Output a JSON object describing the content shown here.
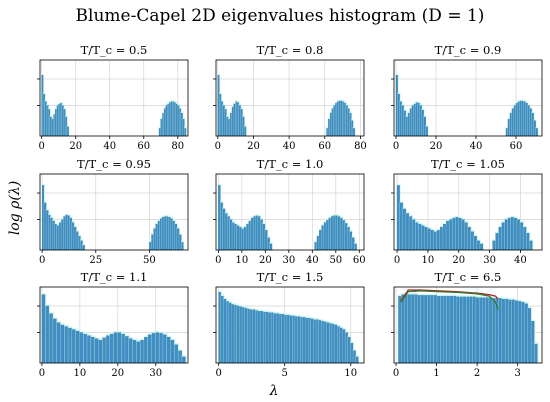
{
  "figure": {
    "title": "Blume-Capel 2D eigenvalues histogram (D = 1)",
    "xlabel": "λ",
    "ylabel": "log ρ(λ)"
  },
  "colors": {
    "bar": "#3f8fc6",
    "bar_edge": "#2f6f9e",
    "glow": "#bff3ef",
    "grid": "#d4d4d4",
    "fit_red": "#b22222",
    "fit_green": "#2e7d32"
  },
  "chart_data": [
    {
      "type": "bar",
      "title": "T/T_c = 0.5",
      "xlim": [
        -1,
        86
      ],
      "xticks": [
        0,
        20,
        40,
        60,
        80
      ],
      "grid": true,
      "legend": "none",
      "x": [
        0.5,
        1.5,
        2.5,
        3.5,
        4.5,
        5.5,
        6.5,
        7.5,
        8.5,
        9.5,
        10.5,
        11.5,
        12.5,
        13.5,
        14.5,
        15.5,
        69.5,
        70.5,
        71.5,
        72.5,
        73.5,
        74.5,
        75.5,
        76.5,
        77.5,
        78.5,
        79.5,
        80.5,
        81.5,
        82.5,
        83.5,
        84.5
      ],
      "values": [
        0.8,
        0.55,
        0.45,
        0.4,
        0.35,
        0.25,
        0.22,
        0.28,
        0.35,
        0.4,
        0.42,
        0.43,
        0.4,
        0.35,
        0.25,
        0.12,
        0.1,
        0.22,
        0.3,
        0.36,
        0.4,
        0.42,
        0.44,
        0.45,
        0.45,
        0.44,
        0.42,
        0.4,
        0.36,
        0.3,
        0.22,
        0.1
      ]
    },
    {
      "type": "bar",
      "title": "T/T_c = 0.8",
      "xlim": [
        -1,
        82
      ],
      "xticks": [
        0,
        20,
        40,
        60,
        80
      ],
      "grid": true,
      "legend": "none",
      "x": [
        0.5,
        1.5,
        2.5,
        3.5,
        4.5,
        5.5,
        6.5,
        7.5,
        8.5,
        9.5,
        10.5,
        11.5,
        12.5,
        13.5,
        14.5,
        15.5,
        61.5,
        62.5,
        63.5,
        64.5,
        65.5,
        66.5,
        67.5,
        68.5,
        69.5,
        70.5,
        71.5,
        72.5,
        73.5,
        74.5,
        75.5,
        76.5
      ],
      "values": [
        0.8,
        0.55,
        0.45,
        0.4,
        0.35,
        0.25,
        0.22,
        0.3,
        0.38,
        0.42,
        0.45,
        0.44,
        0.4,
        0.35,
        0.25,
        0.12,
        0.1,
        0.22,
        0.3,
        0.36,
        0.4,
        0.43,
        0.45,
        0.46,
        0.46,
        0.45,
        0.43,
        0.4,
        0.36,
        0.3,
        0.2,
        0.1
      ]
    },
    {
      "type": "bar",
      "title": "T/T_c = 0.9",
      "xlim": [
        -1,
        73
      ],
      "xticks": [
        0,
        20,
        40,
        60
      ],
      "grid": true,
      "legend": "none",
      "x": [
        0.5,
        1.5,
        2.5,
        3.5,
        4.5,
        5.5,
        6.5,
        7.5,
        8.5,
        9.5,
        10.5,
        11.5,
        12.5,
        13.5,
        14.5,
        15.5,
        55.5,
        56.5,
        57.5,
        58.5,
        59.5,
        60.5,
        61.5,
        62.5,
        63.5,
        64.5,
        65.5,
        66.5,
        67.5,
        68.5,
        69.5,
        70.5
      ],
      "values": [
        0.8,
        0.55,
        0.45,
        0.4,
        0.33,
        0.25,
        0.3,
        0.36,
        0.4,
        0.42,
        0.44,
        0.43,
        0.4,
        0.34,
        0.25,
        0.12,
        0.1,
        0.22,
        0.3,
        0.36,
        0.4,
        0.43,
        0.45,
        0.46,
        0.46,
        0.45,
        0.43,
        0.4,
        0.36,
        0.3,
        0.2,
        0.1
      ]
    },
    {
      "type": "bar",
      "title": "T/T_c = 0.95",
      "xlim": [
        -1,
        68
      ],
      "xticks": [
        0,
        25,
        50
      ],
      "grid": true,
      "legend": "none",
      "x": [
        0.5,
        1.5,
        2.5,
        3.5,
        4.5,
        5.5,
        6.5,
        7.5,
        8.5,
        9.5,
        10.5,
        11.5,
        12.5,
        13.5,
        14.5,
        15.5,
        16.5,
        17.5,
        18.5,
        19.5,
        50.5,
        51.5,
        52.5,
        53.5,
        54.5,
        55.5,
        56.5,
        57.5,
        58.5,
        59.5,
        60.5,
        61.5,
        62.5,
        63.5,
        64.5,
        65.5
      ],
      "values": [
        0.85,
        0.62,
        0.52,
        0.46,
        0.42,
        0.38,
        0.34,
        0.32,
        0.36,
        0.4,
        0.44,
        0.46,
        0.45,
        0.42,
        0.36,
        0.3,
        0.24,
        0.18,
        0.12,
        0.06,
        0.1,
        0.2,
        0.28,
        0.34,
        0.38,
        0.41,
        0.43,
        0.44,
        0.44,
        0.43,
        0.41,
        0.38,
        0.34,
        0.28,
        0.2,
        0.1
      ]
    },
    {
      "type": "bar",
      "title": "T/T_c = 1.0",
      "xlim": [
        -1,
        62
      ],
      "xticks": [
        0,
        10,
        20,
        30,
        40,
        50,
        60
      ],
      "grid": true,
      "legend": "none",
      "x": [
        0.5,
        1.5,
        2.5,
        3.5,
        4.5,
        5.5,
        6.5,
        7.5,
        8.5,
        9.5,
        10.5,
        11.5,
        12.5,
        13.5,
        14.5,
        15.5,
        16.5,
        17.5,
        18.5,
        19.5,
        20.5,
        21.5,
        22.5,
        41.5,
        42.5,
        43.5,
        44.5,
        45.5,
        46.5,
        47.5,
        48.5,
        49.5,
        50.5,
        51.5,
        52.5,
        53.5,
        54.5,
        55.5,
        56.5,
        57.5,
        58.5
      ],
      "values": [
        0.85,
        0.62,
        0.54,
        0.48,
        0.44,
        0.4,
        0.36,
        0.34,
        0.32,
        0.3,
        0.28,
        0.3,
        0.34,
        0.38,
        0.42,
        0.44,
        0.45,
        0.44,
        0.4,
        0.34,
        0.26,
        0.16,
        0.08,
        0.1,
        0.18,
        0.26,
        0.32,
        0.36,
        0.39,
        0.42,
        0.44,
        0.45,
        0.45,
        0.44,
        0.42,
        0.39,
        0.35,
        0.3,
        0.24,
        0.16,
        0.08
      ]
    },
    {
      "type": "bar",
      "title": "T/T_c = 1.05",
      "xlim": [
        -1,
        47
      ],
      "xticks": [
        0,
        10,
        20,
        30,
        40
      ],
      "grid": true,
      "legend": "none",
      "x": [
        0.5,
        1.5,
        2.5,
        3.5,
        4.5,
        5.5,
        6.5,
        7.5,
        8.5,
        9.5,
        10.5,
        11.5,
        12.5,
        13.5,
        14.5,
        15.5,
        16.5,
        17.5,
        18.5,
        19.5,
        20.5,
        21.5,
        22.5,
        23.5,
        24.5,
        25.5,
        26.5,
        27.5,
        31.5,
        32.5,
        33.5,
        34.5,
        35.5,
        36.5,
        37.5,
        38.5,
        39.5,
        40.5,
        41.5,
        42.5,
        43.5
      ],
      "values": [
        0.85,
        0.62,
        0.54,
        0.48,
        0.44,
        0.4,
        0.36,
        0.34,
        0.32,
        0.3,
        0.28,
        0.26,
        0.24,
        0.26,
        0.3,
        0.34,
        0.38,
        0.4,
        0.42,
        0.43,
        0.42,
        0.4,
        0.36,
        0.3,
        0.24,
        0.18,
        0.12,
        0.08,
        0.12,
        0.22,
        0.3,
        0.36,
        0.4,
        0.42,
        0.43,
        0.42,
        0.4,
        0.36,
        0.3,
        0.22,
        0.12
      ]
    },
    {
      "type": "bar",
      "title": "T/T_c = 1.1",
      "xlim": [
        -0.5,
        38.5
      ],
      "xticks": [
        0,
        10,
        20,
        30
      ],
      "grid": true,
      "legend": "none",
      "x": [
        0.5,
        1.5,
        2.5,
        3.5,
        4.5,
        5.5,
        6.5,
        7.5,
        8.5,
        9.5,
        10.5,
        11.5,
        12.5,
        13.5,
        14.5,
        15.5,
        16.5,
        17.5,
        18.5,
        19.5,
        20.5,
        21.5,
        22.5,
        23.5,
        24.5,
        25.5,
        26.5,
        27.5,
        28.5,
        29.5,
        30.5,
        31.5,
        32.5,
        33.5,
        34.5,
        35.5,
        36.5,
        37.5
      ],
      "values": [
        0.9,
        0.75,
        0.65,
        0.58,
        0.53,
        0.5,
        0.48,
        0.46,
        0.44,
        0.42,
        0.4,
        0.38,
        0.36,
        0.34,
        0.32,
        0.3,
        0.33,
        0.36,
        0.38,
        0.4,
        0.4,
        0.38,
        0.35,
        0.32,
        0.3,
        0.28,
        0.3,
        0.34,
        0.37,
        0.39,
        0.4,
        0.39,
        0.37,
        0.34,
        0.3,
        0.24,
        0.16,
        0.08
      ]
    },
    {
      "type": "bar",
      "title": "T/T_c = 1.5",
      "xlim": [
        -0.2,
        11.0
      ],
      "xticks": [
        0,
        5,
        10
      ],
      "grid": true,
      "legend": "none",
      "x": [
        0.1,
        0.3,
        0.5,
        0.7,
        0.9,
        1.1,
        1.3,
        1.5,
        1.7,
        1.9,
        2.1,
        2.3,
        2.5,
        2.7,
        2.9,
        3.1,
        3.3,
        3.5,
        3.7,
        3.9,
        4.1,
        4.3,
        4.5,
        4.7,
        4.9,
        5.1,
        5.3,
        5.5,
        5.7,
        5.9,
        6.1,
        6.3,
        6.5,
        6.7,
        6.9,
        7.1,
        7.3,
        7.5,
        7.7,
        7.9,
        8.1,
        8.3,
        8.5,
        8.7,
        8.9,
        9.1,
        9.3,
        9.5,
        9.7,
        9.9,
        10.1,
        10.3,
        10.5
      ],
      "values": [
        0.93,
        0.88,
        0.84,
        0.81,
        0.79,
        0.77,
        0.76,
        0.75,
        0.74,
        0.73,
        0.72,
        0.71,
        0.7,
        0.7,
        0.69,
        0.68,
        0.68,
        0.67,
        0.67,
        0.66,
        0.66,
        0.65,
        0.65,
        0.64,
        0.64,
        0.63,
        0.63,
        0.62,
        0.62,
        0.61,
        0.61,
        0.6,
        0.6,
        0.59,
        0.59,
        0.58,
        0.57,
        0.57,
        0.56,
        0.55,
        0.54,
        0.53,
        0.52,
        0.51,
        0.5,
        0.48,
        0.46,
        0.44,
        0.4,
        0.34,
        0.26,
        0.16,
        0.08
      ]
    },
    {
      "type": "bar",
      "title": "T/T_c = 6.5",
      "xlim": [
        -0.05,
        3.6
      ],
      "xticks": [
        0,
        1,
        2,
        3
      ],
      "grid": true,
      "legend": "none",
      "x": [
        0.1,
        0.18,
        0.26,
        0.34,
        0.42,
        0.5,
        0.58,
        0.66,
        0.74,
        0.82,
        0.9,
        0.98,
        1.06,
        1.14,
        1.22,
        1.3,
        1.38,
        1.46,
        1.54,
        1.62,
        1.7,
        1.78,
        1.86,
        1.94,
        2.02,
        2.1,
        2.18,
        2.26,
        2.34,
        2.42,
        2.5,
        2.58,
        2.66,
        2.74,
        2.82,
        2.9,
        2.98,
        3.06,
        3.14,
        3.22,
        3.3,
        3.38,
        3.46
      ],
      "values": [
        0.88,
        0.9,
        0.9,
        0.9,
        0.9,
        0.9,
        0.89,
        0.89,
        0.89,
        0.89,
        0.89,
        0.89,
        0.88,
        0.88,
        0.88,
        0.88,
        0.88,
        0.88,
        0.87,
        0.87,
        0.87,
        0.87,
        0.87,
        0.87,
        0.86,
        0.86,
        0.86,
        0.86,
        0.86,
        0.85,
        0.85,
        0.85,
        0.84,
        0.84,
        0.83,
        0.83,
        0.82,
        0.81,
        0.8,
        0.78,
        0.72,
        0.55,
        0.25
      ],
      "overlays": [
        {
          "x": [
            0.12,
            0.3,
            0.6,
            1.0,
            1.5,
            2.0,
            2.3,
            2.45,
            2.52
          ],
          "y": [
            0.82,
            0.96,
            0.96,
            0.95,
            0.94,
            0.92,
            0.9,
            0.88,
            0.84
          ]
        },
        {
          "x": [
            0.12,
            0.3,
            0.6,
            1.0,
            1.5,
            2.0,
            2.3,
            2.45,
            2.52
          ],
          "y": [
            0.8,
            0.94,
            0.95,
            0.94,
            0.93,
            0.91,
            0.88,
            0.8,
            0.7
          ]
        }
      ]
    }
  ]
}
